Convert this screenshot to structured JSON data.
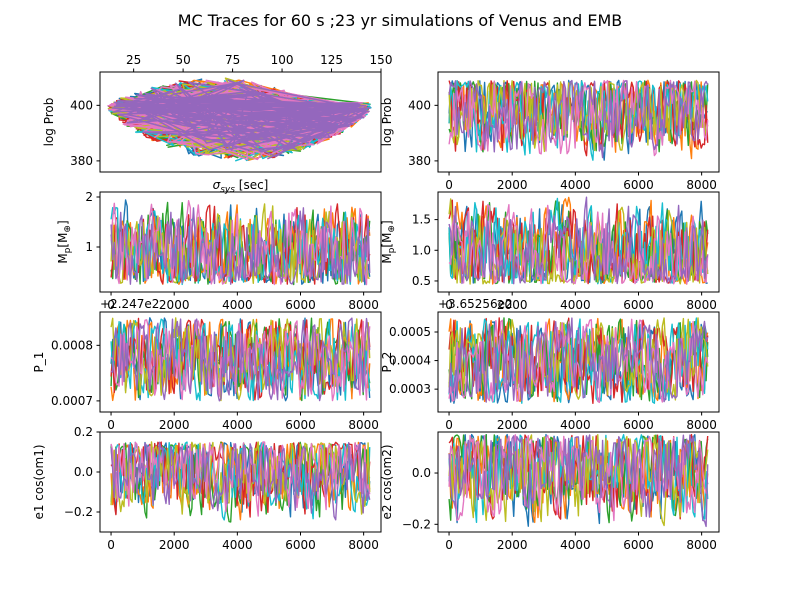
{
  "figure": {
    "title": "MC Traces for 60 s ;23 yr simulations of Venus and EMB"
  },
  "palette": [
    "#1f77b4",
    "#ff7f0e",
    "#2ca02c",
    "#d62728",
    "#17becf",
    "#bcbd22",
    "#e377c2",
    "#9467bd"
  ],
  "chart_data": [
    {
      "id": "p1",
      "type": "scatter",
      "xlabel": "σsys [sec]",
      "ylabel": "log Prob",
      "x_axis_position": "top",
      "xlim": [
        8,
        150
      ],
      "ylim": [
        376,
        412
      ],
      "xticks": [
        25,
        50,
        75,
        100,
        125,
        150
      ],
      "yticks": [
        380,
        400
      ],
      "ytick_labels": [
        "380",
        "400"
      ],
      "offset_label": "",
      "series_style": "scatter-fan",
      "y_range": [
        378,
        409
      ],
      "x_range": [
        12,
        145
      ]
    },
    {
      "id": "p2",
      "type": "line",
      "xlabel": "",
      "ylabel": "log Prob",
      "xlim": [
        -350,
        8550
      ],
      "ylim": [
        376,
        412
      ],
      "xticks": [
        0,
        2000,
        4000,
        6000,
        8000
      ],
      "yticks": [
        380,
        400
      ],
      "ytick_labels": [
        "380",
        "400"
      ],
      "offset_label": "",
      "series_style": "traces",
      "y_range": [
        379,
        409
      ],
      "y_center": 399
    },
    {
      "id": "p3",
      "type": "line",
      "xlabel": "",
      "ylabel": "Mp[M⊕]",
      "xlim": [
        -350,
        8550
      ],
      "ylim": [
        0.1,
        2.1
      ],
      "xticks": [
        0,
        2000,
        4000,
        6000,
        8000
      ],
      "yticks": [
        1,
        2
      ],
      "ytick_labels": [
        "1",
        "2"
      ],
      "offset_label": "",
      "series_style": "traces",
      "y_range": [
        0.25,
        1.95
      ],
      "y_center": 0.9
    },
    {
      "id": "p4",
      "type": "line",
      "xlabel": "",
      "ylabel": "Mp[M⊕]",
      "xlim": [
        -350,
        8550
      ],
      "ylim": [
        0.32,
        1.95
      ],
      "xticks": [
        0,
        2000,
        4000,
        6000,
        8000
      ],
      "yticks": [
        0.5,
        1.0,
        1.5
      ],
      "ytick_labels": [
        "0.5",
        "1.0",
        "1.5"
      ],
      "offset_label": "",
      "series_style": "traces",
      "y_range": [
        0.45,
        1.9
      ],
      "y_center": 0.95
    },
    {
      "id": "p5",
      "type": "line",
      "xlabel": "",
      "ylabel": "P_1",
      "xlim": [
        -350,
        8550
      ],
      "ylim": [
        0.00068,
        0.00086
      ],
      "xticks": [
        0,
        2000,
        4000,
        6000,
        8000
      ],
      "yticks": [
        0.0007,
        0.0008
      ],
      "ytick_labels": [
        "0.0007",
        "0.0008"
      ],
      "offset_label": "+2.247e2",
      "series_style": "traces",
      "y_range": [
        0.0007,
        0.00085
      ],
      "y_center": 0.000775
    },
    {
      "id": "p6",
      "type": "line",
      "xlabel": "",
      "ylabel": "P_2",
      "xlim": [
        -350,
        8550
      ],
      "ylim": [
        0.00022,
        0.00057
      ],
      "xticks": [
        0,
        2000,
        4000,
        6000,
        8000
      ],
      "yticks": [
        0.0003,
        0.0004,
        0.0005
      ],
      "ytick_labels": [
        "0.0003",
        "0.0004",
        "0.0005"
      ],
      "offset_label": "+3.65256e2",
      "series_style": "traces",
      "y_range": [
        0.00025,
        0.00055
      ],
      "y_center": 0.0004
    },
    {
      "id": "p7",
      "type": "line",
      "xlabel": "",
      "ylabel": "e1 cos(om1)",
      "xlim": [
        -350,
        8550
      ],
      "ylim": [
        -0.3,
        0.2
      ],
      "xticks": [
        0,
        2000,
        4000,
        6000,
        8000
      ],
      "yticks": [
        -0.2,
        0.0,
        0.2
      ],
      "ytick_labels": [
        "−0.2",
        "0.0",
        "0.2"
      ],
      "offset_label": "",
      "series_style": "traces",
      "y_range": [
        -0.27,
        0.15
      ],
      "y_center": 0.02
    },
    {
      "id": "p8",
      "type": "line",
      "xlabel": "",
      "ylabel": "e2 cos(om2)",
      "xlim": [
        -350,
        8550
      ],
      "ylim": [
        -0.23,
        0.16
      ],
      "xticks": [
        0,
        2000,
        4000,
        6000,
        8000
      ],
      "yticks": [
        -0.2,
        0.0
      ],
      "ytick_labels": [
        "−0.2",
        "0.0"
      ],
      "offset_label": "",
      "series_style": "traces",
      "y_range": [
        -0.21,
        0.15
      ],
      "y_center": 0.02
    }
  ]
}
